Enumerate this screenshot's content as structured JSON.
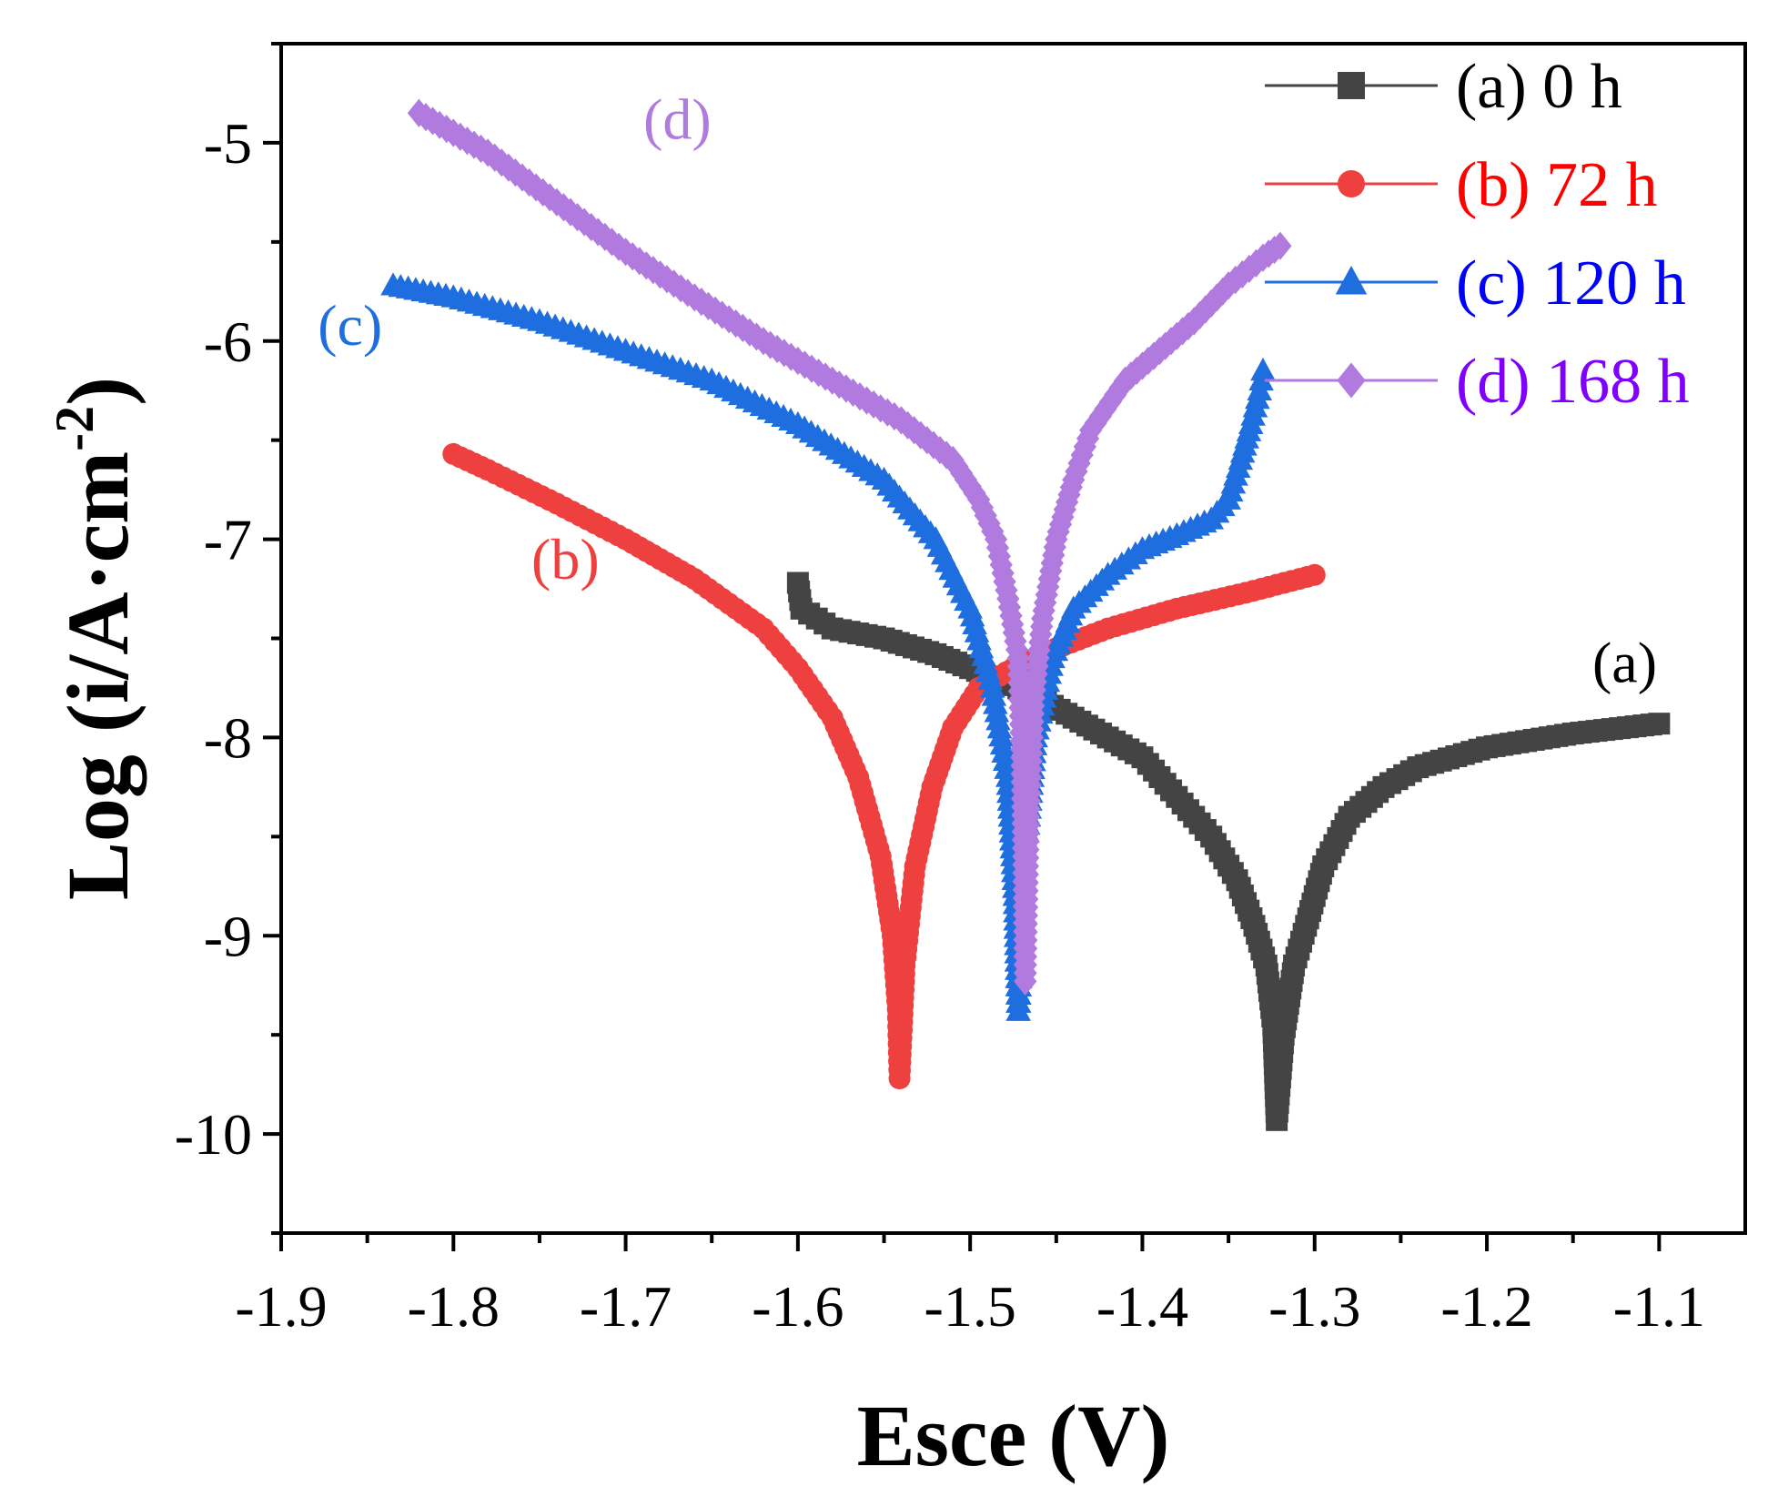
{
  "chart_data": {
    "type": "line",
    "title": "",
    "xlabel": "Esce (V)",
    "ylabel": "Log (i/A·cm",
    "ylabel_sup": "-2",
    "ylabel_close": ")",
    "xlim": [
      -1.9,
      -1.05
    ],
    "ylim": [
      -10.5,
      -4.5
    ],
    "xticks": [
      -1.9,
      -1.8,
      -1.7,
      -1.6,
      -1.5,
      -1.4,
      -1.3,
      -1.2,
      -1.1
    ],
    "xtick_labels": [
      "-1.9",
      "-1.8",
      "-1.7",
      "-1.6",
      "-1.5",
      "-1.4",
      "-1.3",
      "-1.2",
      "-1.1"
    ],
    "yticks": [
      -10,
      -9,
      -8,
      -7,
      -6,
      -5
    ],
    "ytick_labels": [
      "-10",
      "-9",
      "-8",
      "-7",
      "-6",
      "-5"
    ],
    "legend_position": "top-right",
    "series": [
      {
        "name": "(a) 0 h",
        "label": "(a)",
        "label_at": [
          -1.12,
          -7.72
        ],
        "color": "#444444",
        "marker": "square",
        "points": [
          [
            -1.6,
            -7.22
          ],
          [
            -1.598,
            -7.35
          ],
          [
            -1.58,
            -7.45
          ],
          [
            -1.55,
            -7.5
          ],
          [
            -1.52,
            -7.58
          ],
          [
            -1.5,
            -7.65
          ],
          [
            -1.48,
            -7.72
          ],
          [
            -1.46,
            -7.8
          ],
          [
            -1.44,
            -7.9
          ],
          [
            -1.42,
            -8.0
          ],
          [
            -1.4,
            -8.1
          ],
          [
            -1.38,
            -8.3
          ],
          [
            -1.36,
            -8.5
          ],
          [
            -1.345,
            -8.72
          ],
          [
            -1.335,
            -8.95
          ],
          [
            -1.328,
            -9.15
          ],
          [
            -1.324,
            -9.45
          ],
          [
            -1.322,
            -9.93
          ],
          [
            -1.318,
            -9.5
          ],
          [
            -1.312,
            -9.15
          ],
          [
            -1.305,
            -8.95
          ],
          [
            -1.295,
            -8.65
          ],
          [
            -1.28,
            -8.4
          ],
          [
            -1.26,
            -8.25
          ],
          [
            -1.24,
            -8.15
          ],
          [
            -1.2,
            -8.05
          ],
          [
            -1.15,
            -7.98
          ],
          [
            -1.1,
            -7.93
          ]
        ]
      },
      {
        "name": "(b) 72 h",
        "label": "(b)",
        "label_at": [
          -1.735,
          -7.2
        ],
        "color": "#ef4040",
        "marker": "circle",
        "points": [
          [
            -1.8,
            -6.57
          ],
          [
            -1.78,
            -6.65
          ],
          [
            -1.74,
            -6.82
          ],
          [
            -1.7,
            -7.0
          ],
          [
            -1.66,
            -7.2
          ],
          [
            -1.62,
            -7.45
          ],
          [
            -1.6,
            -7.65
          ],
          [
            -1.58,
            -7.9
          ],
          [
            -1.565,
            -8.2
          ],
          [
            -1.552,
            -8.6
          ],
          [
            -1.545,
            -9.0
          ],
          [
            -1.542,
            -9.37
          ],
          [
            -1.541,
            -9.72
          ],
          [
            -1.538,
            -9.15
          ],
          [
            -1.532,
            -8.65
          ],
          [
            -1.522,
            -8.25
          ],
          [
            -1.51,
            -7.95
          ],
          [
            -1.495,
            -7.75
          ],
          [
            -1.475,
            -7.65
          ],
          [
            -1.45,
            -7.55
          ],
          [
            -1.42,
            -7.45
          ],
          [
            -1.38,
            -7.35
          ],
          [
            -1.34,
            -7.27
          ],
          [
            -1.3,
            -7.18
          ]
        ]
      },
      {
        "name": "(c) 120 h",
        "label": "(c)",
        "label_at": [
          -1.86,
          -6.02
        ],
        "color": "#1e6ee0",
        "marker": "triangle",
        "points": [
          [
            -1.835,
            -5.72
          ],
          [
            -1.8,
            -5.78
          ],
          [
            -1.75,
            -5.9
          ],
          [
            -1.7,
            -6.05
          ],
          [
            -1.65,
            -6.2
          ],
          [
            -1.6,
            -6.42
          ],
          [
            -1.55,
            -6.7
          ],
          [
            -1.52,
            -7.0
          ],
          [
            -1.5,
            -7.35
          ],
          [
            -1.487,
            -7.75
          ],
          [
            -1.478,
            -8.2
          ],
          [
            -1.474,
            -8.8
          ],
          [
            -1.472,
            -9.38
          ],
          [
            -1.468,
            -8.6
          ],
          [
            -1.462,
            -8.0
          ],
          [
            -1.452,
            -7.6
          ],
          [
            -1.44,
            -7.35
          ],
          [
            -1.42,
            -7.18
          ],
          [
            -1.4,
            -7.05
          ],
          [
            -1.38,
            -6.98
          ],
          [
            -1.36,
            -6.9
          ],
          [
            -1.35,
            -6.8
          ],
          [
            -1.343,
            -6.6
          ],
          [
            -1.337,
            -6.42
          ],
          [
            -1.332,
            -6.25
          ],
          [
            -1.33,
            -6.15
          ]
        ]
      },
      {
        "name": "(d) 168 h",
        "label": "(d)",
        "label_at": [
          -1.67,
          -4.98
        ],
        "color": "#b07adf",
        "marker": "diamond",
        "points": [
          [
            -1.82,
            -4.85
          ],
          [
            -1.78,
            -5.05
          ],
          [
            -1.74,
            -5.3
          ],
          [
            -1.7,
            -5.55
          ],
          [
            -1.66,
            -5.78
          ],
          [
            -1.62,
            -6.0
          ],
          [
            -1.58,
            -6.2
          ],
          [
            -1.54,
            -6.4
          ],
          [
            -1.51,
            -6.6
          ],
          [
            -1.495,
            -6.8
          ],
          [
            -1.485,
            -7.0
          ],
          [
            -1.478,
            -7.3
          ],
          [
            -1.472,
            -7.6
          ],
          [
            -1.47,
            -8.1
          ],
          [
            -1.469,
            -8.6
          ],
          [
            -1.468,
            -9.23
          ],
          [
            -1.466,
            -8.4
          ],
          [
            -1.463,
            -7.8
          ],
          [
            -1.458,
            -7.4
          ],
          [
            -1.45,
            -7.0
          ],
          [
            -1.44,
            -6.7
          ],
          [
            -1.43,
            -6.45
          ],
          [
            -1.41,
            -6.2
          ],
          [
            -1.39,
            -6.05
          ],
          [
            -1.37,
            -5.9
          ],
          [
            -1.35,
            -5.72
          ],
          [
            -1.33,
            -5.58
          ],
          [
            -1.32,
            -5.52
          ]
        ]
      }
    ]
  }
}
